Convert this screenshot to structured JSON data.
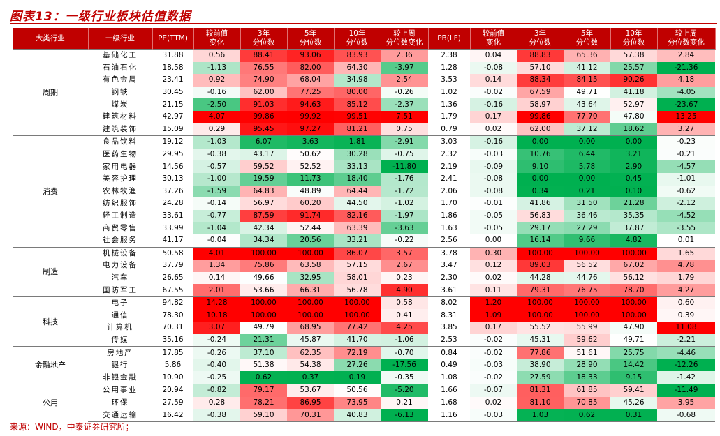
{
  "title": "图表13：一级行业板块估值数据",
  "source": "来源：WIND，中泰证券研究所；",
  "headers": [
    "大类行业",
    "一级行业",
    "PE(TTM)",
    "较前值\n变化",
    "3年\n分位数",
    "5年\n分位数",
    "10年\n分位数",
    "较上周\n分位数变化",
    "PB(LF)",
    "较前值\n变化",
    "3年\n分位数",
    "5年\n分位数",
    "10年\n分位数",
    "较上周\n分位数变化"
  ],
  "groups": [
    {
      "name": "周期",
      "rows": [
        [
          "基础化工",
          "31.88",
          "0.56",
          "88.41",
          "93.06",
          "83.93",
          "2.36",
          "2.38",
          "0.04",
          "88.83",
          "65.36",
          "57.38",
          "2.84"
        ],
        [
          "石油石化",
          "18.58",
          "-1.13",
          "76.55",
          "82.00",
          "64.30",
          "-3.97",
          "1.28",
          "-0.08",
          "57.10",
          "41.12",
          "25.57",
          "-21.36"
        ],
        [
          "有色金属",
          "23.41",
          "0.92",
          "74.90",
          "68.04",
          "34.98",
          "2.54",
          "3.53",
          "0.14",
          "88.34",
          "84.15",
          "90.26",
          "4.18"
        ],
        [
          "钢铁",
          "30.45",
          "-0.16",
          "62.00",
          "77.25",
          "80.00",
          "-0.26",
          "1.02",
          "-0.02",
          "67.59",
          "49.71",
          "41.18",
          "-4.05"
        ],
        [
          "煤炭",
          "21.15",
          "-2.50",
          "91.03",
          "94.63",
          "85.12",
          "-2.37",
          "1.36",
          "-0.16",
          "58.97",
          "43.64",
          "52.97",
          "-23.67"
        ],
        [
          "建筑材料",
          "42.97",
          "4.07",
          "99.86",
          "99.92",
          "99.51",
          "7.51",
          "1.79",
          "0.17",
          "99.86",
          "77.70",
          "47.80",
          "13.25"
        ],
        [
          "建筑装饰",
          "15.09",
          "0.29",
          "95.45",
          "97.27",
          "81.21",
          "0.75",
          "0.79",
          "0.02",
          "62.00",
          "37.12",
          "18.62",
          "3.27"
        ]
      ]
    },
    {
      "name": "消费",
      "rows": [
        [
          "食品饮料",
          "19.12",
          "-1.03",
          "6.07",
          "3.63",
          "1.81",
          "-2.91",
          "3.03",
          "-0.16",
          "0.00",
          "0.00",
          "0.00",
          "-0.23"
        ],
        [
          "医药生物",
          "29.95",
          "-0.38",
          "43.17",
          "50.62",
          "30.28",
          "-0.75",
          "2.32",
          "-0.03",
          "10.76",
          "6.44",
          "3.21",
          "-0.21"
        ],
        [
          "家用电器",
          "14.56",
          "-0.57",
          "59.52",
          "52.52",
          "33.13",
          "-11.80",
          "2.19",
          "-0.09",
          "9.10",
          "5.78",
          "2.90",
          "-4.57"
        ],
        [
          "美容护理",
          "30.13",
          "-1.00",
          "19.59",
          "11.73",
          "18.40",
          "-1.76",
          "2.41",
          "-0.08",
          "0.00",
          "0.00",
          "0.45",
          "-1.01"
        ],
        [
          "农林牧渔",
          "37.26",
          "-1.59",
          "64.83",
          "48.89",
          "64.44",
          "-1.72",
          "2.06",
          "-0.08",
          "0.34",
          "0.21",
          "0.10",
          "-0.62"
        ],
        [
          "纺织服饰",
          "24.28",
          "-0.14",
          "56.97",
          "60.20",
          "44.50",
          "-1.02",
          "1.70",
          "-0.01",
          "41.86",
          "31.50",
          "21.28",
          "-2.12"
        ],
        [
          "轻工制造",
          "33.61",
          "-0.77",
          "87.59",
          "91.74",
          "82.16",
          "-1.97",
          "1.86",
          "-0.05",
          "56.83",
          "36.46",
          "35.35",
          "-4.52"
        ],
        [
          "商贸零售",
          "33.99",
          "-1.04",
          "42.34",
          "52.44",
          "63.39",
          "-3.63",
          "1.63",
          "-0.05",
          "29.17",
          "27.29",
          "37.87",
          "-3.55"
        ],
        [
          "社会服务",
          "41.17",
          "-0.04",
          "34.34",
          "20.56",
          "33.21",
          "-0.22",
          "2.56",
          "0.00",
          "16.14",
          "9.66",
          "4.82",
          "0.01"
        ]
      ]
    },
    {
      "name": "制造",
      "rows": [
        [
          "机械设备",
          "50.58",
          "4.01",
          "100.00",
          "100.00",
          "86.07",
          "3.57",
          "3.78",
          "0.30",
          "100.00",
          "100.00",
          "100.00",
          "1.65"
        ],
        [
          "电力设备",
          "37.79",
          "1.34",
          "75.86",
          "63.58",
          "57.15",
          "2.67",
          "3.47",
          "0.12",
          "89.03",
          "56.52",
          "67.02",
          "4.78"
        ],
        [
          "汽车",
          "26.65",
          "0.14",
          "49.66",
          "32.95",
          "58.01",
          "0.23",
          "2.30",
          "0.02",
          "44.28",
          "44.76",
          "56.12",
          "1.79"
        ],
        [
          "国防军工",
          "67.55",
          "2.01",
          "53.66",
          "66.31",
          "56.78",
          "4.90",
          "3.61",
          "0.11",
          "79.31",
          "76.75",
          "78.70",
          "4.27"
        ]
      ]
    },
    {
      "name": "科技",
      "rows": [
        [
          "电子",
          "94.82",
          "14.28",
          "100.00",
          "100.00",
          "100.00",
          "0.58",
          "8.02",
          "1.20",
          "100.00",
          "100.00",
          "100.00",
          "0.60"
        ],
        [
          "通信",
          "78.30",
          "10.18",
          "100.00",
          "100.00",
          "100.00",
          "0.41",
          "8.31",
          "1.09",
          "100.00",
          "100.00",
          "100.00",
          "0.39"
        ],
        [
          "计算机",
          "70.31",
          "3.07",
          "49.79",
          "68.95",
          "77.42",
          "4.25",
          "3.85",
          "0.17",
          "55.52",
          "55.99",
          "47.90",
          "11.08"
        ],
        [
          "传媒",
          "35.16",
          "-0.24",
          "21.31",
          "45.87",
          "41.70",
          "-1.06",
          "2.53",
          "-0.02",
          "45.31",
          "59.62",
          "49.71",
          "-2.21"
        ]
      ]
    },
    {
      "name": "金融地产",
      "rows": [
        [
          "房地产",
          "17.85",
          "-0.26",
          "37.10",
          "62.35",
          "72.19",
          "-0.70",
          "0.84",
          "-0.02",
          "77.86",
          "51.61",
          "25.75",
          "-4.46"
        ],
        [
          "银行",
          "5.86",
          "-0.40",
          "51.38",
          "54.38",
          "27.26",
          "-17.56",
          "0.49",
          "-0.03",
          "38.90",
          "28.90",
          "14.42",
          "-12.26"
        ],
        [
          "非银金融",
          "10.90",
          "-0.25",
          "0.62",
          "0.37",
          "0.19",
          "-0.35",
          "1.08",
          "-0.02",
          "27.59",
          "18.33",
          "9.15",
          "-1.42"
        ]
      ]
    },
    {
      "name": "公用",
      "rows": [
        [
          "公用事业",
          "20.94",
          "-0.82",
          "79.17",
          "53.67",
          "50.56",
          "-5.20",
          "1.66",
          "-0.07",
          "81.31",
          "61.85",
          "59.41",
          "-11.49"
        ],
        [
          "环保",
          "27.59",
          "0.28",
          "78.21",
          "86.95",
          "73.95",
          "0.21",
          "1.68",
          "0.02",
          "81.10",
          "70.85",
          "45.26",
          "3.95"
        ],
        [
          "交通运输",
          "16.42",
          "-0.38",
          "59.10",
          "70.31",
          "40.83",
          "-6.13",
          "1.16",
          "-0.03",
          "1.03",
          "0.62",
          "0.31",
          "-0.68"
        ]
      ]
    }
  ],
  "colors": {
    "header": "#c00000",
    "max_red": "#ff0000",
    "max_green": "#00a040"
  }
}
